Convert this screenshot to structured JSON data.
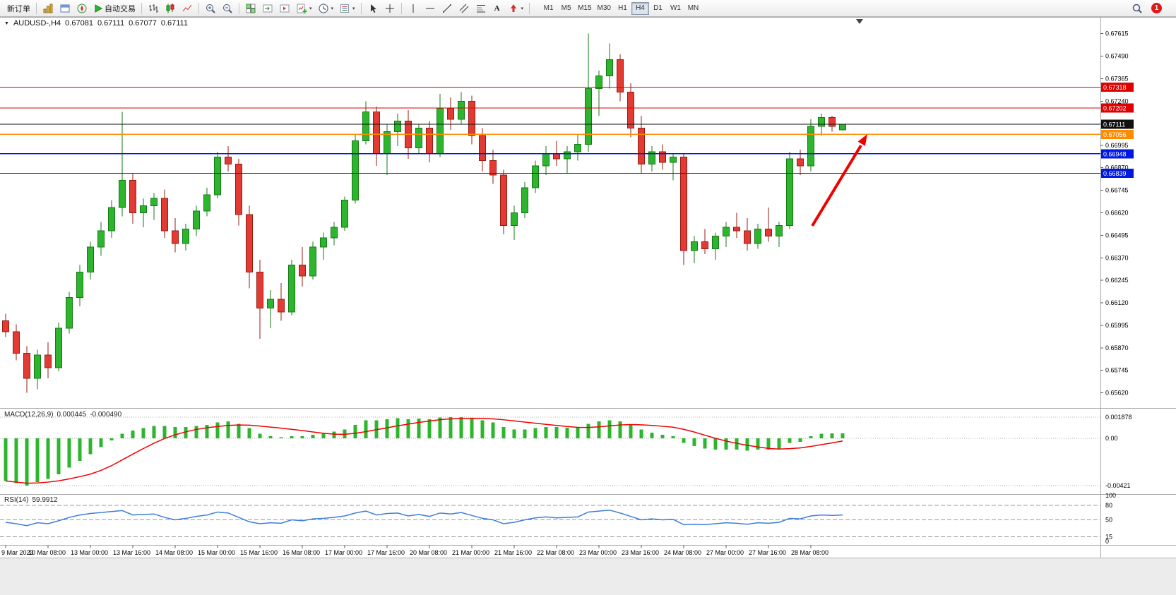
{
  "toolbar": {
    "new_order_label": "新订单",
    "auto_trading_label": "自动交易",
    "text_tool_label": "A",
    "caret": "▾",
    "timeframes": [
      "M1",
      "M5",
      "M15",
      "M30",
      "H1",
      "H4",
      "D1",
      "W1",
      "MN"
    ],
    "active_timeframe": "H4",
    "notification_count": "1",
    "icon_names": [
      "new-order",
      "market-watch",
      "data-window",
      "navigator",
      "auto-trading-play",
      "bar-chart",
      "candlestick-chart",
      "line-chart",
      "zoom-in",
      "zoom-out",
      "tile-windows",
      "auto-scroll",
      "chart-shift",
      "new-chart",
      "periods-clock",
      "templates",
      "cursor",
      "crosshair",
      "vertical-line",
      "horizontal-line",
      "trendline",
      "equidistant-channel",
      "fibonacci",
      "text",
      "arrow-tools",
      "search",
      "notification-badge"
    ]
  },
  "chart": {
    "title": {
      "dropdown_glyph": "▼",
      "symbol": "AUDUSD-,H4",
      "open": "0.67081",
      "high": "0.67111",
      "low": "0.67077",
      "close": "0.67111"
    },
    "price_axis_ticks": [
      "0.67615",
      "0.67490",
      "0.67365",
      "0.67240",
      "0.67115",
      "0.66995",
      "0.66870",
      "0.66745",
      "0.66620",
      "0.66495",
      "0.66370",
      "0.66245",
      "0.66120",
      "0.65995",
      "0.65870",
      "0.65745",
      "0.65620"
    ],
    "levels": [
      {
        "price": 0.67318,
        "label": "0.67318",
        "color": "#e00000"
      },
      {
        "price": 0.67202,
        "label": "0.67202",
        "color": "#e00000"
      },
      {
        "price": 0.67111,
        "label": "0.67111",
        "color": "#111111",
        "current": true
      },
      {
        "price": 0.67056,
        "label": "0.67056",
        "color": "#ff8c00"
      },
      {
        "price": 0.66948,
        "label": "0.66948",
        "color": "#0018e0"
      },
      {
        "price": 0.66839,
        "label": "0.66839",
        "color": "#0018e0"
      }
    ],
    "colors": {
      "up": "#2db52d",
      "up_dark": "#157a15",
      "down": "#e23b33",
      "down_dark": "#9a1b12",
      "macd_hist": "#2db52d",
      "macd_signal": "#f00000",
      "rsi_line": "#3d7edb",
      "arrow": "#f00000",
      "separator": "#a8a8a8",
      "level_dots": "#b0b0b0"
    },
    "indicators": {
      "macd": {
        "label": "MACD(12,26,9)",
        "value1": "0.000445",
        "value2": "-0.000490",
        "scale_labels": [
          {
            "v": 0.001878,
            "t": "0.001878"
          },
          {
            "v": 0,
            "t": "0.00"
          },
          {
            "v": -0.00421,
            "t": "-0.00421"
          }
        ]
      },
      "rsi": {
        "label": "RSI(14)",
        "value": "59.9912",
        "scale_labels": [
          {
            "v": 100,
            "t": "100"
          },
          {
            "v": 80,
            "t": "80"
          },
          {
            "v": 50,
            "t": "50"
          },
          {
            "v": 15,
            "t": "15"
          },
          {
            "v": 0,
            "t": "0"
          }
        ],
        "level_lines": [
          80,
          50,
          15
        ]
      }
    }
  },
  "chart_data": [
    {
      "type": "candlestick",
      "title": "AUDUSD- H4",
      "ylim": [
        0.6554,
        0.677
      ],
      "x_label_every": 4,
      "x_labels": [
        "9 Mar 2023",
        "10 Mar 08:00",
        "13 Mar 00:00",
        "13 Mar 16:00",
        "14 Mar 08:00",
        "15 Mar 00:00",
        "15 Mar 16:00",
        "16 Mar 08:00",
        "17 Mar 00:00",
        "17 Mar 16:00",
        "20 Mar 08:00",
        "21 Mar 00:00",
        "21 Mar 16:00",
        "22 Mar 08:00",
        "23 Mar 00:00",
        "23 Mar 16:00",
        "24 Mar 08:00",
        "27 Mar 00:00",
        "27 Mar 16:00",
        "28 Mar 08:00"
      ],
      "candles": [
        [
          0.6602,
          0.6606,
          0.6593,
          0.6596
        ],
        [
          0.6596,
          0.66,
          0.658,
          0.6584
        ],
        [
          0.6584,
          0.6588,
          0.6562,
          0.657
        ],
        [
          0.657,
          0.6586,
          0.6564,
          0.6583
        ],
        [
          0.6583,
          0.659,
          0.657,
          0.6576
        ],
        [
          0.6576,
          0.6601,
          0.6574,
          0.6598
        ],
        [
          0.6598,
          0.6618,
          0.6595,
          0.6615
        ],
        [
          0.6615,
          0.6633,
          0.661,
          0.6629
        ],
        [
          0.6629,
          0.6646,
          0.6625,
          0.6643
        ],
        [
          0.6643,
          0.6657,
          0.6638,
          0.6652
        ],
        [
          0.6652,
          0.6669,
          0.6648,
          0.6665
        ],
        [
          0.6665,
          0.6718,
          0.666,
          0.668
        ],
        [
          0.668,
          0.6684,
          0.6656,
          0.6662
        ],
        [
          0.6662,
          0.667,
          0.6654,
          0.6666
        ],
        [
          0.6666,
          0.6673,
          0.6658,
          0.667
        ],
        [
          0.667,
          0.6675,
          0.6648,
          0.6652
        ],
        [
          0.6652,
          0.6659,
          0.664,
          0.6645
        ],
        [
          0.6645,
          0.6656,
          0.6641,
          0.6653
        ],
        [
          0.6653,
          0.6666,
          0.6649,
          0.6663
        ],
        [
          0.6663,
          0.6676,
          0.666,
          0.6672
        ],
        [
          0.6672,
          0.6696,
          0.667,
          0.6693
        ],
        [
          0.6693,
          0.6699,
          0.6685,
          0.6689
        ],
        [
          0.6689,
          0.6692,
          0.6655,
          0.6661
        ],
        [
          0.6661,
          0.6666,
          0.662,
          0.6629
        ],
        [
          0.6629,
          0.6636,
          0.6592,
          0.6609
        ],
        [
          0.6609,
          0.6619,
          0.6598,
          0.6614
        ],
        [
          0.6614,
          0.6623,
          0.6602,
          0.6607
        ],
        [
          0.6607,
          0.6636,
          0.6605,
          0.6633
        ],
        [
          0.6633,
          0.6643,
          0.6621,
          0.6627
        ],
        [
          0.6627,
          0.6646,
          0.6625,
          0.6643
        ],
        [
          0.6643,
          0.6651,
          0.6636,
          0.6648
        ],
        [
          0.6648,
          0.6657,
          0.6644,
          0.6654
        ],
        [
          0.6654,
          0.6671,
          0.6652,
          0.6669
        ],
        [
          0.6669,
          0.6706,
          0.6667,
          0.6702
        ],
        [
          0.6702,
          0.6724,
          0.67,
          0.6718
        ],
        [
          0.6718,
          0.6721,
          0.6688,
          0.6695
        ],
        [
          0.6695,
          0.6711,
          0.6683,
          0.6707
        ],
        [
          0.6707,
          0.6717,
          0.6699,
          0.6713
        ],
        [
          0.6713,
          0.6719,
          0.6692,
          0.6698
        ],
        [
          0.6698,
          0.6711,
          0.6695,
          0.6709
        ],
        [
          0.6709,
          0.6713,
          0.669,
          0.6695
        ],
        [
          0.6695,
          0.6728,
          0.6693,
          0.672
        ],
        [
          0.672,
          0.6726,
          0.6708,
          0.6714
        ],
        [
          0.6714,
          0.6729,
          0.6711,
          0.6724
        ],
        [
          0.6724,
          0.6727,
          0.67,
          0.6705
        ],
        [
          0.6705,
          0.6709,
          0.6685,
          0.6691
        ],
        [
          0.6691,
          0.6697,
          0.6678,
          0.6683
        ],
        [
          0.6683,
          0.6686,
          0.665,
          0.6655
        ],
        [
          0.6655,
          0.6666,
          0.6647,
          0.6662
        ],
        [
          0.6662,
          0.6679,
          0.6659,
          0.6676
        ],
        [
          0.6676,
          0.6691,
          0.6673,
          0.6688
        ],
        [
          0.6688,
          0.6699,
          0.6683,
          0.6695
        ],
        [
          0.6695,
          0.6702,
          0.6688,
          0.6692
        ],
        [
          0.6692,
          0.6699,
          0.6684,
          0.6696
        ],
        [
          0.6696,
          0.6706,
          0.6691,
          0.67
        ],
        [
          0.67,
          0.67615,
          0.6696,
          0.6731
        ],
        [
          0.6731,
          0.6741,
          0.6716,
          0.6738
        ],
        [
          0.6738,
          0.6756,
          0.6731,
          0.6747
        ],
        [
          0.6747,
          0.675,
          0.6724,
          0.6729
        ],
        [
          0.6729,
          0.6734,
          0.6704,
          0.6709
        ],
        [
          0.6709,
          0.6716,
          0.6684,
          0.6689
        ],
        [
          0.6689,
          0.6699,
          0.6685,
          0.6696
        ],
        [
          0.6696,
          0.67,
          0.6686,
          0.669
        ],
        [
          0.669,
          0.6695,
          0.668,
          0.6693
        ],
        [
          0.6693,
          0.6695,
          0.6633,
          0.6641
        ],
        [
          0.6641,
          0.6649,
          0.6634,
          0.6646
        ],
        [
          0.6646,
          0.6653,
          0.6639,
          0.6642
        ],
        [
          0.6642,
          0.6651,
          0.6636,
          0.6649
        ],
        [
          0.6649,
          0.6657,
          0.6643,
          0.6654
        ],
        [
          0.6654,
          0.6662,
          0.6648,
          0.6652
        ],
        [
          0.6652,
          0.6659,
          0.6641,
          0.6645
        ],
        [
          0.6645,
          0.6656,
          0.6642,
          0.6653
        ],
        [
          0.6653,
          0.6665,
          0.6646,
          0.6649
        ],
        [
          0.6649,
          0.6657,
          0.6643,
          0.6655
        ],
        [
          0.6655,
          0.6696,
          0.6653,
          0.6692
        ],
        [
          0.6692,
          0.6697,
          0.6683,
          0.6688
        ],
        [
          0.6688,
          0.6714,
          0.6685,
          0.671
        ],
        [
          0.671,
          0.6717,
          0.6705,
          0.6715
        ],
        [
          0.6715,
          0.6716,
          0.6707,
          0.671
        ],
        [
          0.67081,
          0.67111,
          0.67077,
          0.67111
        ]
      ],
      "horizontal_lines": [
        0.67318,
        0.67202,
        0.67111,
        0.67056,
        0.66948,
        0.66839
      ],
      "annotation": "red-up-arrow"
    },
    {
      "type": "bar",
      "name": "MACD(12,26,9)",
      "ylim": [
        -0.00421,
        0.001878
      ],
      "values": [
        -0.0038,
        -0.004,
        -0.0042,
        -0.0039,
        -0.0036,
        -0.0032,
        -0.0026,
        -0.002,
        -0.0014,
        -0.0008,
        -0.0002,
        0.0004,
        0.0007,
        0.0009,
        0.0011,
        0.0011,
        0.001,
        0.001,
        0.0011,
        0.0012,
        0.0014,
        0.0015,
        0.0013,
        0.0009,
        0.0004,
        0.0002,
        0.0001,
        0.0002,
        0.0002,
        0.0003,
        0.0004,
        0.0006,
        0.0008,
        0.0012,
        0.0016,
        0.0016,
        0.0017,
        0.0018,
        0.0017,
        0.00175,
        0.0017,
        0.00185,
        0.00188,
        0.0019,
        0.0018,
        0.0016,
        0.0014,
        0.001,
        0.0008,
        0.0008,
        0.0009,
        0.001,
        0.001,
        0.00095,
        0.00095,
        0.0013,
        0.0015,
        0.0016,
        0.0015,
        0.0012,
        0.0008,
        0.0005,
        0.0003,
        0.0002,
        -0.0004,
        -0.0007,
        -0.0009,
        -0.001,
        -0.001,
        -0.001,
        -0.0011,
        -0.001,
        -0.001,
        -0.0009,
        -0.0004,
        -0.0003,
        0.0002,
        0.0004,
        0.00045,
        0.000445
      ],
      "signal_note": "signal line = 9-period average of values, drawn red"
    },
    {
      "type": "line",
      "name": "RSI(14)",
      "ylim": [
        0,
        100
      ],
      "levels": [
        80,
        50,
        15
      ],
      "values": [
        45,
        42,
        38,
        44,
        42,
        48,
        55,
        60,
        63,
        65,
        67,
        69,
        60,
        61,
        62,
        55,
        50,
        53,
        57,
        60,
        66,
        64,
        55,
        46,
        42,
        44,
        43,
        50,
        48,
        52,
        53,
        55,
        58,
        64,
        68,
        60,
        63,
        64,
        58,
        61,
        57,
        64,
        62,
        65,
        59,
        53,
        50,
        42,
        45,
        50,
        54,
        56,
        54,
        55,
        56,
        66,
        68,
        70,
        64,
        57,
        50,
        52,
        50,
        51,
        40,
        41,
        40,
        42,
        44,
        43,
        41,
        44,
        43,
        45,
        53,
        52,
        58,
        60,
        59,
        59.99
      ]
    }
  ]
}
